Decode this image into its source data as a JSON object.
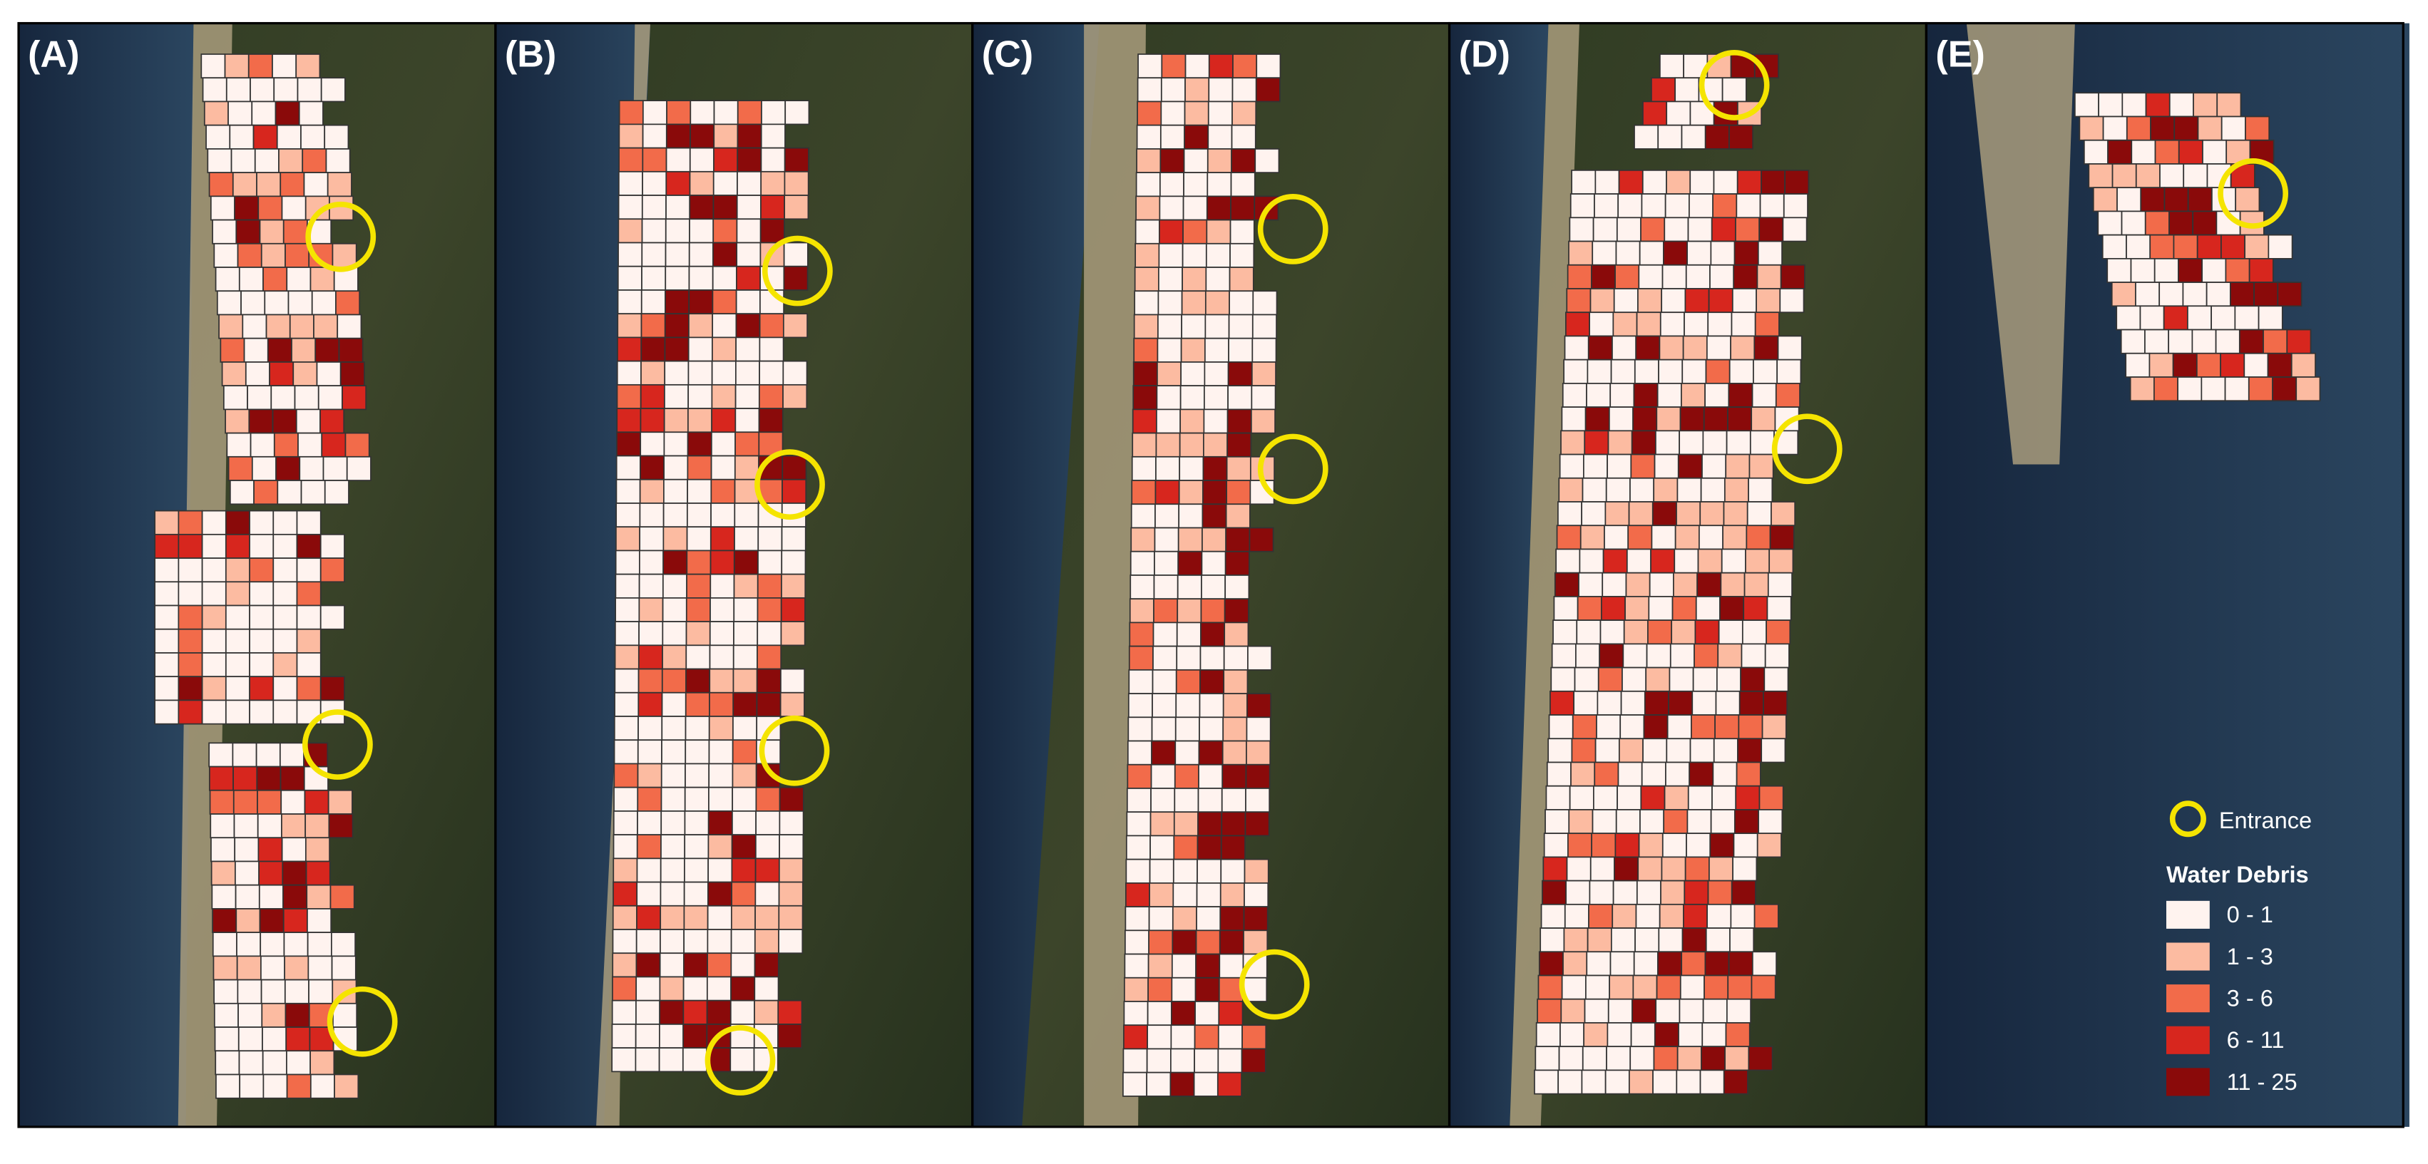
{
  "panels": [
    {
      "label": "(A)"
    },
    {
      "label": "(B)"
    },
    {
      "label": "(C)"
    },
    {
      "label": "(D)"
    },
    {
      "label": "(E)"
    }
  ],
  "legend": {
    "entrance": "Entrance",
    "title": "Water Debris",
    "classes": [
      {
        "label": "0 - 1",
        "color": "#fff3ef"
      },
      {
        "label": "1 - 3",
        "color": "#fcbba1"
      },
      {
        "label": "3 - 6",
        "color": "#f26b4a"
      },
      {
        "label": "6 - 11",
        "color": "#d7261e"
      },
      {
        "label": "11 - 25",
        "color": "#8a0a0a"
      }
    ]
  }
}
